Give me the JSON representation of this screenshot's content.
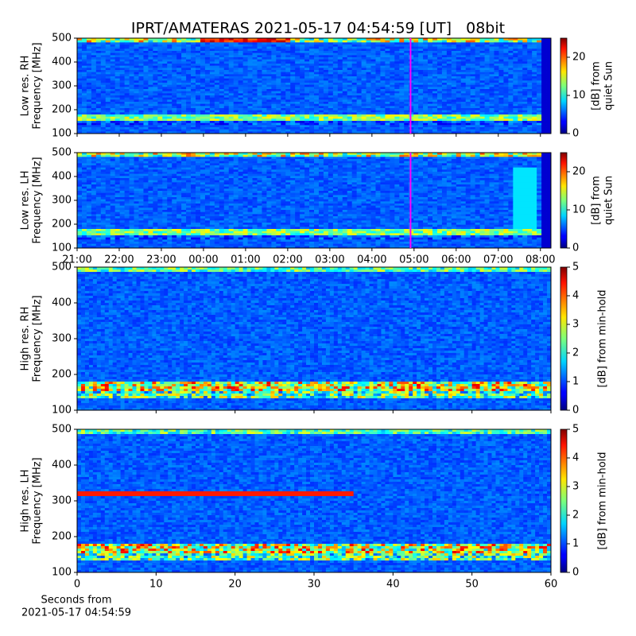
{
  "title": "IPRT/AMATERAS 2021-05-17 04:54:59 [UT]   08bit",
  "chart_data": [
    {
      "type": "heatmap",
      "ylabel": [
        "Low res. RH",
        "Frequency [MHz]"
      ],
      "ylim": [
        100,
        500
      ],
      "yticks": [
        100,
        200,
        300,
        400,
        500
      ],
      "xlim": [
        "21:00",
        "08:15"
      ],
      "marker": {
        "x": "04:55",
        "color": "#ff00ff"
      },
      "colorbar": {
        "label": [
          "[dB] from",
          "quiet Sun"
        ],
        "lim": [
          0,
          25
        ],
        "ticks": [
          0,
          10,
          20
        ]
      }
    },
    {
      "type": "heatmap",
      "ylabel": [
        "Low res. LH",
        "Frequency [MHz]"
      ],
      "ylim": [
        100,
        500
      ],
      "yticks": [
        100,
        200,
        300,
        400,
        500
      ],
      "xlim": [
        "21:00",
        "08:15"
      ],
      "xticks": [
        "21:00",
        "22:00",
        "23:00",
        "00:00",
        "01:00",
        "02:00",
        "03:00",
        "04:00",
        "05:00",
        "06:00",
        "07:00",
        "08:00"
      ],
      "marker": {
        "x": "04:55",
        "color": "#ff00ff"
      },
      "colorbar": {
        "label": [
          "[dB] from",
          "quiet Sun"
        ],
        "lim": [
          0,
          25
        ],
        "ticks": [
          0,
          10,
          20
        ]
      }
    },
    {
      "type": "heatmap",
      "ylabel": [
        "High res. RH",
        "Frequency [MHz]"
      ],
      "ylim": [
        100,
        500
      ],
      "yticks": [
        100,
        200,
        300,
        400,
        500
      ],
      "xlim": [
        0,
        60
      ],
      "colorbar": {
        "label": [
          "[dB] from min-hold"
        ],
        "lim": [
          0,
          5
        ],
        "ticks": [
          0,
          1,
          2,
          3,
          4,
          5
        ]
      }
    },
    {
      "type": "heatmap",
      "ylabel": [
        "High res. LH",
        "Frequency [MHz]"
      ],
      "ylim": [
        100,
        500
      ],
      "yticks": [
        100,
        200,
        300,
        400,
        500
      ],
      "xlim": [
        0,
        60
      ],
      "xticks": [
        0,
        10,
        20,
        30,
        40,
        50,
        60
      ],
      "xlabel": [
        "Seconds from",
        "2021-05-17 04:54:59"
      ],
      "colorbar": {
        "label": [
          "[dB] from min-hold"
        ],
        "lim": [
          0,
          5
        ],
        "ticks": [
          0,
          1,
          2,
          3,
          4,
          5
        ]
      }
    }
  ]
}
